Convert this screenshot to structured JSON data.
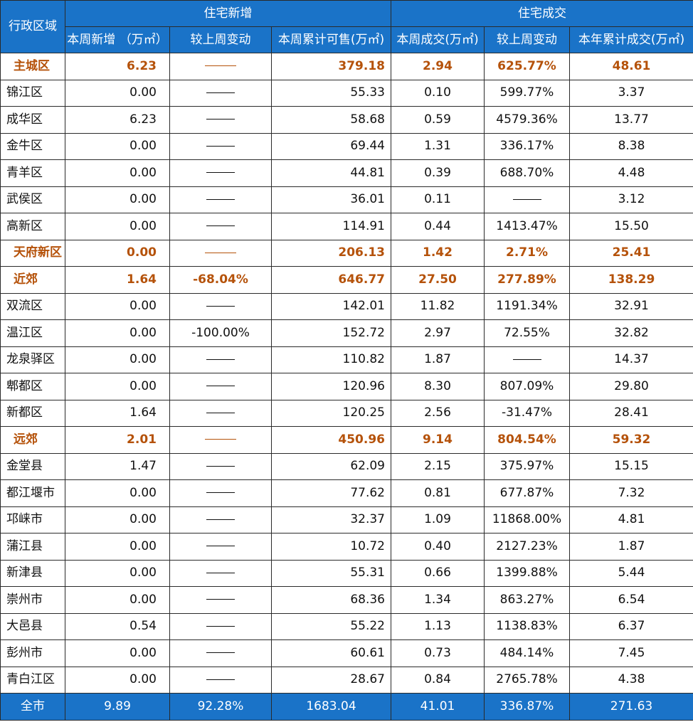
{
  "header": {
    "region_label": "行政区域",
    "group_new": "住宅新增",
    "group_deal": "住宅成交",
    "columns": [
      "本周新增 （万㎡）",
      "较上周变动",
      "本周累计可售(万㎡)",
      "本周成交(万㎡)",
      "较上周变动",
      "本年累计成交(万㎡)"
    ]
  },
  "rows": [
    {
      "name": "主城区",
      "bold": true,
      "c1": "6.23",
      "c2": "",
      "c3": "379.18",
      "c4": "2.94",
      "c5": "625.77%",
      "c6": "48.61"
    },
    {
      "name": "锦江区",
      "bold": false,
      "c1": "0.00",
      "c2": "",
      "c3": "55.33",
      "c4": "0.10",
      "c5": "599.77%",
      "c6": "3.37"
    },
    {
      "name": "成华区",
      "bold": false,
      "c1": "6.23",
      "c2": "",
      "c3": "58.68",
      "c4": "0.59",
      "c5": "4579.36%",
      "c6": "13.77"
    },
    {
      "name": "金牛区",
      "bold": false,
      "c1": "0.00",
      "c2": "",
      "c3": "69.44",
      "c4": "1.31",
      "c5": "336.17%",
      "c6": "8.38"
    },
    {
      "name": "青羊区",
      "bold": false,
      "c1": "0.00",
      "c2": "",
      "c3": "44.81",
      "c4": "0.39",
      "c5": "688.70%",
      "c6": "4.48"
    },
    {
      "name": "武侯区",
      "bold": false,
      "c1": "0.00",
      "c2": "",
      "c3": "36.01",
      "c4": "0.11",
      "c5": "",
      "c6": "3.12"
    },
    {
      "name": "高新区",
      "bold": false,
      "c1": "0.00",
      "c2": "",
      "c3": "114.91",
      "c4": "0.44",
      "c5": "1413.47%",
      "c6": "15.50"
    },
    {
      "name": "天府新区",
      "bold": true,
      "c1": "0.00",
      "c2": "",
      "c3": "206.13",
      "c4": "1.42",
      "c5": "2.71%",
      "c6": "25.41"
    },
    {
      "name": "近郊",
      "bold": true,
      "c1": "1.64",
      "c2": "-68.04%",
      "c3": "646.77",
      "c4": "27.50",
      "c5": "277.89%",
      "c6": "138.29"
    },
    {
      "name": "双流区",
      "bold": false,
      "c1": "0.00",
      "c2": "",
      "c3": "142.01",
      "c4": "11.82",
      "c5": "1191.34%",
      "c6": "32.91"
    },
    {
      "name": "温江区",
      "bold": false,
      "c1": "0.00",
      "c2": "-100.00%",
      "c3": "152.72",
      "c4": "2.97",
      "c5": "72.55%",
      "c6": "32.82"
    },
    {
      "name": "龙泉驿区",
      "bold": false,
      "c1": "0.00",
      "c2": "",
      "c3": "110.82",
      "c4": "1.87",
      "c5": "",
      "c6": "14.37"
    },
    {
      "name": "郫都区",
      "bold": false,
      "c1": "0.00",
      "c2": "",
      "c3": "120.96",
      "c4": "8.30",
      "c5": "807.09%",
      "c6": "29.80"
    },
    {
      "name": "新都区",
      "bold": false,
      "c1": "1.64",
      "c2": "",
      "c3": "120.25",
      "c4": "2.56",
      "c5": "-31.47%",
      "c6": "28.41"
    },
    {
      "name": "远郊",
      "bold": true,
      "c1": "2.01",
      "c2": "",
      "c3": "450.96",
      "c4": "9.14",
      "c5": "804.54%",
      "c6": "59.32"
    },
    {
      "name": "金堂县",
      "bold": false,
      "c1": "1.47",
      "c2": "",
      "c3": "62.09",
      "c4": "2.15",
      "c5": "375.97%",
      "c6": "15.15"
    },
    {
      "name": "都江堰市",
      "bold": false,
      "c1": "0.00",
      "c2": "",
      "c3": "77.62",
      "c4": "0.81",
      "c5": "677.87%",
      "c6": "7.32"
    },
    {
      "name": "邛崃市",
      "bold": false,
      "c1": "0.00",
      "c2": "",
      "c3": "32.37",
      "c4": "1.09",
      "c5": "11868.00%",
      "c6": "4.81"
    },
    {
      "name": "蒲江县",
      "bold": false,
      "c1": "0.00",
      "c2": "",
      "c3": "10.72",
      "c4": "0.40",
      "c5": "2127.23%",
      "c6": "1.87"
    },
    {
      "name": "新津县",
      "bold": false,
      "c1": "0.00",
      "c2": "",
      "c3": "55.31",
      "c4": "0.66",
      "c5": "1399.88%",
      "c6": "5.44"
    },
    {
      "name": "崇州市",
      "bold": false,
      "c1": "0.00",
      "c2": "",
      "c3": "68.36",
      "c4": "1.34",
      "c5": "863.27%",
      "c6": "6.54"
    },
    {
      "name": "大邑县",
      "bold": false,
      "c1": "0.54",
      "c2": "",
      "c3": "55.22",
      "c4": "1.13",
      "c5": "1138.83%",
      "c6": "6.37"
    },
    {
      "name": "彭州市",
      "bold": false,
      "c1": "0.00",
      "c2": "",
      "c3": "60.61",
      "c4": "0.73",
      "c5": "484.14%",
      "c6": "7.45"
    },
    {
      "name": "青白江区",
      "bold": false,
      "c1": "0.00",
      "c2": "",
      "c3": "28.67",
      "c4": "0.84",
      "c5": "2765.78%",
      "c6": "4.38"
    }
  ],
  "total": {
    "name": "全市",
    "c1": "9.89",
    "c2": "92.28%",
    "c3": "1683.04",
    "c4": "41.01",
    "c5": "336.87%",
    "c6": "271.63"
  },
  "colors": {
    "header_bg": "#1a73c8",
    "highlight_text": "#b5520a"
  }
}
